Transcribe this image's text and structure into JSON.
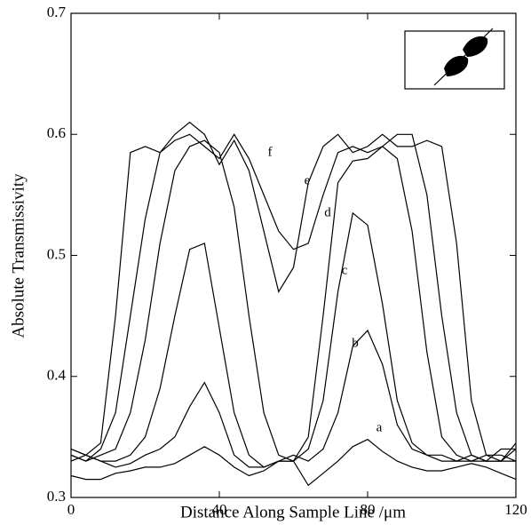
{
  "chart_data": {
    "type": "line",
    "x_label": "Distance Along Sample Line /μm",
    "y_label": "Absolute Transmissivity",
    "x": [
      0,
      4,
      8,
      12,
      16,
      20,
      24,
      28,
      32,
      36,
      40,
      44,
      48,
      52,
      56,
      60,
      64,
      68,
      72,
      76,
      80,
      84,
      88,
      92,
      96,
      100,
      104,
      108,
      112,
      116,
      120
    ],
    "series": [
      {
        "name": "a",
        "color": "#000000",
        "values": [
          0.318,
          0.315,
          0.315,
          0.32,
          0.322,
          0.325,
          0.325,
          0.328,
          0.335,
          0.342,
          0.335,
          0.325,
          0.318,
          0.322,
          0.33,
          0.33,
          0.31,
          0.32,
          0.33,
          0.342,
          0.348,
          0.338,
          0.33,
          0.325,
          0.322,
          0.322,
          0.325,
          0.328,
          0.325,
          0.32,
          0.315
        ]
      },
      {
        "name": "b",
        "color": "#000000",
        "values": [
          0.33,
          0.335,
          0.33,
          0.325,
          0.328,
          0.335,
          0.34,
          0.35,
          0.375,
          0.395,
          0.37,
          0.335,
          0.325,
          0.325,
          0.33,
          0.335,
          0.33,
          0.34,
          0.37,
          0.425,
          0.438,
          0.41,
          0.36,
          0.34,
          0.335,
          0.335,
          0.33,
          0.33,
          0.335,
          0.335,
          0.33
        ]
      },
      {
        "name": "c",
        "color": "#000000",
        "values": [
          0.34,
          0.335,
          0.33,
          0.33,
          0.335,
          0.35,
          0.39,
          0.45,
          0.505,
          0.51,
          0.44,
          0.37,
          0.335,
          0.325,
          0.33,
          0.33,
          0.34,
          0.38,
          0.47,
          0.535,
          0.525,
          0.46,
          0.38,
          0.345,
          0.335,
          0.33,
          0.33,
          0.335,
          0.33,
          0.33,
          0.34
        ]
      },
      {
        "name": "d",
        "color": "#000000",
        "values": [
          0.335,
          0.33,
          0.335,
          0.34,
          0.37,
          0.43,
          0.51,
          0.57,
          0.59,
          0.595,
          0.585,
          0.54,
          0.45,
          0.37,
          0.335,
          0.33,
          0.35,
          0.45,
          0.56,
          0.578,
          0.58,
          0.59,
          0.58,
          0.52,
          0.42,
          0.35,
          0.335,
          0.33,
          0.33,
          0.34,
          0.34
        ]
      },
      {
        "name": "e",
        "color": "#000000",
        "values": [
          0.335,
          0.33,
          0.34,
          0.37,
          0.45,
          0.53,
          0.585,
          0.595,
          0.6,
          0.59,
          0.58,
          0.6,
          0.58,
          0.55,
          0.52,
          0.505,
          0.51,
          0.55,
          0.585,
          0.59,
          0.585,
          0.59,
          0.6,
          0.6,
          0.55,
          0.45,
          0.37,
          0.335,
          0.33,
          0.33,
          0.33
        ]
      },
      {
        "name": "f",
        "color": "#000000",
        "values": [
          0.34,
          0.335,
          0.345,
          0.45,
          0.585,
          0.59,
          0.585,
          0.6,
          0.61,
          0.6,
          0.575,
          0.595,
          0.57,
          0.52,
          0.47,
          0.49,
          0.56,
          0.59,
          0.6,
          0.585,
          0.59,
          0.6,
          0.59,
          0.59,
          0.595,
          0.59,
          0.51,
          0.38,
          0.335,
          0.33,
          0.345
        ]
      }
    ],
    "xlim": [
      0,
      120
    ],
    "xticks": [
      0,
      40,
      80,
      120
    ],
    "ylim": [
      0.3,
      0.7
    ],
    "yticks": [
      0.3,
      0.4,
      0.5,
      0.6,
      0.7
    ]
  }
}
